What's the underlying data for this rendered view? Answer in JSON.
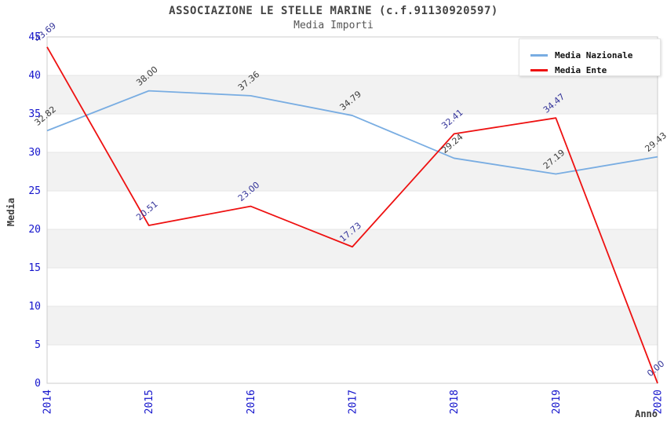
{
  "title": "ASSOCIAZIONE LE STELLE MARINE (c.f.91130920597)",
  "subtitle": "Media Importi",
  "chart_data": {
    "type": "line",
    "x": [
      "2014",
      "2015",
      "2016",
      "2017",
      "2018",
      "2019",
      "2020"
    ],
    "series": [
      {
        "name": "Media Nazionale",
        "color": "#79ade2",
        "label_color": "#3a3a3a",
        "values": [
          32.82,
          38.0,
          37.36,
          34.79,
          29.24,
          27.19,
          29.43
        ],
        "labels": [
          "32.82",
          "38.00",
          "37.36",
          "34.79",
          "29.24",
          "27.19",
          "29.43"
        ]
      },
      {
        "name": "Media Ente",
        "color": "#ee1111",
        "label_color": "#333399",
        "values": [
          43.69,
          20.51,
          23.0,
          17.73,
          32.41,
          34.47,
          0.0
        ],
        "labels": [
          "43.69",
          "20.51",
          "23.00",
          "17.73",
          "32.41",
          "34.47",
          "0.00"
        ]
      }
    ],
    "xlabel": "Anno",
    "ylabel": "Media",
    "ylim": [
      0,
      45
    ],
    "yticks": [
      0,
      5,
      10,
      15,
      20,
      25,
      30,
      35,
      40,
      45
    ],
    "legend_position": "top-right",
    "grid": "alternating-horizontal-bands",
    "band_color": "#f2f2f2",
    "grid_line_color": "#e6e6e6",
    "plot_border_color": "#cccccc",
    "tick_color": "#1414cc"
  }
}
